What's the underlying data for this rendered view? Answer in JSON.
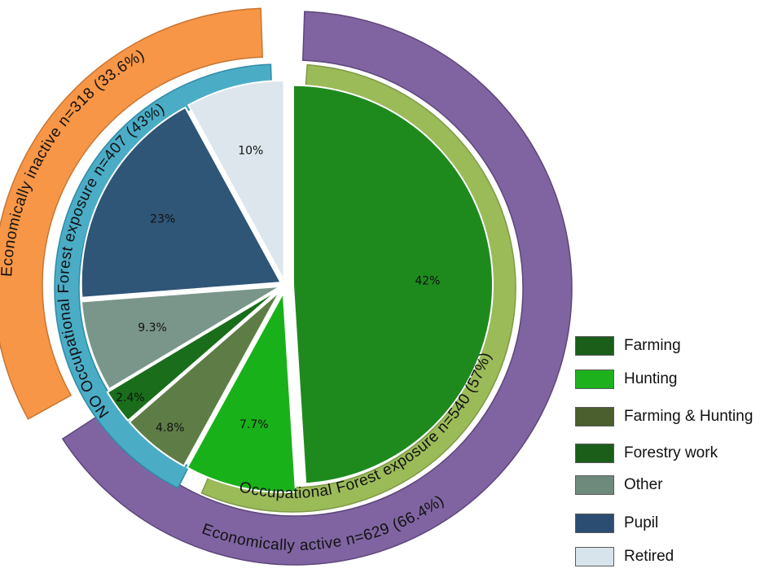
{
  "chart_data": {
    "type": "pie",
    "title": "",
    "slices": [
      {
        "label": "Forestry work",
        "value": 42,
        "display": "42%",
        "color": "#1e8a1e"
      },
      {
        "label": "Hunting",
        "value": 7.7,
        "display": "7.7%",
        "color": "#19b119"
      },
      {
        "label": "Farming & Hunting",
        "value": 4.8,
        "display": "4.8%",
        "color": "#5e7d46"
      },
      {
        "label": "Farming",
        "value": 2.4,
        "display": "2.4%",
        "color": "#1a6d1a"
      },
      {
        "label": "Other",
        "value": 9.3,
        "display": "9.3%",
        "color": "#7a968a"
      },
      {
        "label": "Pupil",
        "value": 23,
        "display": "23%",
        "color": "#2f5577"
      },
      {
        "label": "Retired",
        "value": 10,
        "display": "10%",
        "color": "#dce6ec"
      }
    ],
    "middle_ring": [
      {
        "label": "Occupational  Forest  exposure  n=540  (57%)",
        "value": 57,
        "color": "#9bbb59"
      },
      {
        "label": "NO  Occupational  Forest  exposure  n=407  (43%)",
        "value": 43,
        "color": "#4bacc6"
      }
    ],
    "outer_ring": [
      {
        "label": "Economically  active n=629 (66.4%)",
        "value": 66.4,
        "color": "#8064a2"
      },
      {
        "label": "Economically   inactive  n=318  (33.6%)",
        "value": 33.6,
        "color": "#f79646"
      }
    ],
    "legend": [
      {
        "label": "Farming",
        "color": "#1a5e1a"
      },
      {
        "label": "Hunting",
        "color": "#1db21d"
      },
      {
        "label": "Farming & Hunting",
        "color": "#4a5e2e"
      },
      {
        "label": "Forestry work",
        "color": "#1a5e1a"
      },
      {
        "label": "Other",
        "color": "#6e8a7c"
      },
      {
        "label": "Pupil",
        "color": "#2c4d72"
      },
      {
        "label": "Retired",
        "color": "#d8e4eb"
      }
    ]
  }
}
